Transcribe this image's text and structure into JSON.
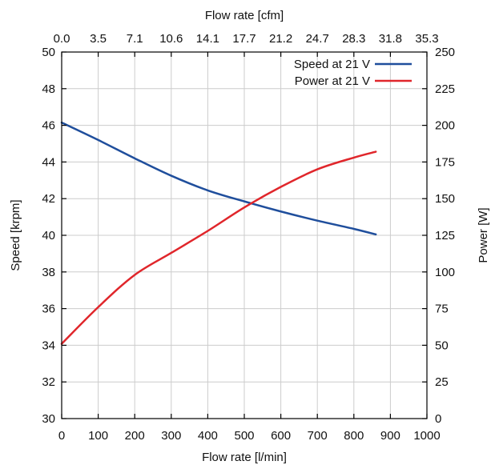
{
  "chart_data": {
    "type": "line",
    "title": "",
    "xlabel": "Flow rate [l/min]",
    "x2label": "Flow rate [cfm]",
    "ylabel": "Speed [krpm]",
    "y2label": "Power [W]",
    "xlim": [
      0,
      1000
    ],
    "ylim": [
      30,
      50
    ],
    "y2lim": [
      0,
      250
    ],
    "grid": true,
    "legend_position": "top-right",
    "x_ticks": [
      "0",
      "100",
      "200",
      "300",
      "400",
      "500",
      "600",
      "700",
      "800",
      "900",
      "1000"
    ],
    "x2_ticks": [
      "0.0",
      "3.5",
      "7.1",
      "10.6",
      "14.1",
      "17.7",
      "21.2",
      "24.7",
      "28.3",
      "31.8",
      "35.3"
    ],
    "y_ticks": [
      "30",
      "32",
      "34",
      "36",
      "38",
      "40",
      "42",
      "44",
      "46",
      "48",
      "50"
    ],
    "y2_ticks": [
      "0",
      "25",
      "50",
      "75",
      "100",
      "125",
      "150",
      "175",
      "200",
      "225",
      "250"
    ],
    "series": [
      {
        "name": "Speed at 21 V",
        "axis": "left",
        "color": "#1f4e9c",
        "x": [
          0,
          100,
          200,
          300,
          400,
          500,
          600,
          700,
          800,
          860
        ],
        "y": [
          46.15,
          45.2,
          44.2,
          43.25,
          42.45,
          41.85,
          41.3,
          40.8,
          40.35,
          40.05
        ]
      },
      {
        "name": "Power at 21 V",
        "axis": "right",
        "color": "#e0262b",
        "x": [
          0,
          100,
          200,
          300,
          400,
          500,
          600,
          700,
          800,
          860
        ],
        "y": [
          51,
          76,
          98,
          113,
          128,
          144,
          158,
          170,
          178,
          182
        ]
      }
    ]
  }
}
